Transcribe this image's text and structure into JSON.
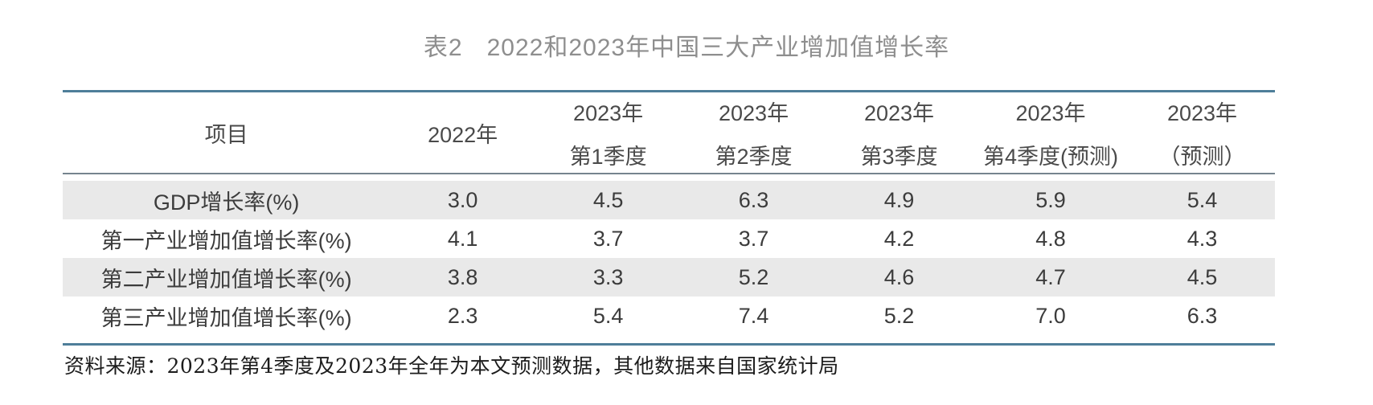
{
  "title": {
    "tag": "表2",
    "text": "2022和2023年中国三大产业增加值增长率"
  },
  "table": {
    "columns": [
      {
        "line1": "项目",
        "line2": ""
      },
      {
        "line1": "2022年",
        "line2": ""
      },
      {
        "line1": "2023年",
        "line2": "第1季度"
      },
      {
        "line1": "2023年",
        "line2": "第2季度"
      },
      {
        "line1": "2023年",
        "line2": "第3季度"
      },
      {
        "line1": "2023年",
        "line2": "第4季度(预测)"
      },
      {
        "line1": "2023年",
        "line2": "（预测）"
      }
    ],
    "rows": [
      {
        "label": "GDP增长率(%)",
        "values": [
          "3.0",
          "4.5",
          "6.3",
          "4.9",
          "5.9",
          "5.4"
        ]
      },
      {
        "label": "第一产业增加值增长率(%)",
        "values": [
          "4.1",
          "3.7",
          "3.7",
          "4.2",
          "4.8",
          "4.3"
        ]
      },
      {
        "label": "第二产业增加值增长率(%)",
        "values": [
          "3.8",
          "3.3",
          "5.2",
          "4.6",
          "4.7",
          "4.5"
        ]
      },
      {
        "label": "第三产业增加值增长率(%)",
        "values": [
          "2.3",
          "5.4",
          "7.4",
          "5.2",
          "7.0",
          "6.3"
        ]
      }
    ]
  },
  "footer": {
    "source": "资料来源：2023年第4季度及2023年全年为本文预测数据，其他数据来自国家统计局"
  },
  "colors": {
    "accent_border": "#4e7e99",
    "header_separator": "#76848e",
    "row_shade": "#e9e9e9",
    "title_gray": "#8e8e8e"
  },
  "chart_data": {
    "type": "table",
    "title": "表2 2022和2023年中国三大产业增加值增长率",
    "categories": [
      "2022年",
      "2023年第1季度",
      "2023年第2季度",
      "2023年第3季度",
      "2023年第4季度(预测)",
      "2023年(预测)"
    ],
    "series": [
      {
        "name": "GDP增长率(%)",
        "values": [
          3.0,
          4.5,
          6.3,
          4.9,
          5.9,
          5.4
        ]
      },
      {
        "name": "第一产业增加值增长率(%)",
        "values": [
          4.1,
          3.7,
          3.7,
          4.2,
          4.8,
          4.3
        ]
      },
      {
        "name": "第二产业增加值增长率(%)",
        "values": [
          3.8,
          3.3,
          5.2,
          4.6,
          4.7,
          4.5
        ]
      },
      {
        "name": "第三产业增加值增长率(%)",
        "values": [
          2.3,
          5.4,
          7.4,
          5.2,
          7.0,
          6.3
        ]
      }
    ],
    "source_note": "资料来源：2023年第4季度及2023年全年为本文预测数据，其他数据来自国家统计局"
  }
}
